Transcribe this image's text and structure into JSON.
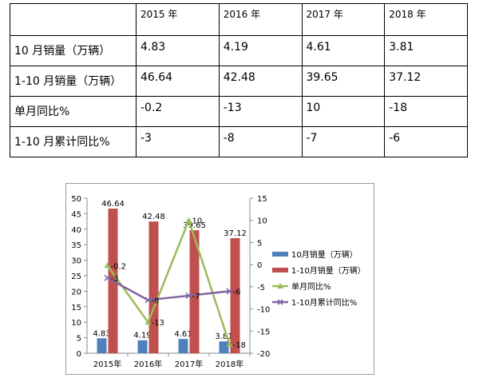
{
  "table": {
    "headers": [
      "",
      "2015 年",
      "2016 年",
      "2017 年",
      "2018 年"
    ],
    "rows": [
      {
        "label": "10 月销量（万辆）",
        "values": [
          "4.83",
          "4.19",
          "4.61",
          "3.81"
        ]
      },
      {
        "label": "1-10 月销量（万辆）",
        "values": [
          "46.64",
          "42.48",
          "39.65",
          "37.12"
        ]
      },
      {
        "label": "单月同比%",
        "values": [
          "-0.2",
          "-13",
          "10",
          "-18"
        ]
      },
      {
        "label": "1-10 月累计同比%",
        "values": [
          "-3",
          "-8",
          "-7",
          "-6"
        ]
      }
    ]
  },
  "chart_data": {
    "type": "bar",
    "categories": [
      "2015年",
      "2016年",
      "2017年",
      "2018年"
    ],
    "ylim": [
      0,
      50
    ],
    "yticks": [
      "0",
      "5",
      "10",
      "15",
      "20",
      "25",
      "30",
      "35",
      "40",
      "45",
      "50"
    ],
    "y2lim": [
      -20,
      15
    ],
    "y2ticks": [
      "-20",
      "-15",
      "-10",
      "-5",
      "0",
      "5",
      "10",
      "15"
    ],
    "grid": false,
    "legend": "right",
    "series": [
      {
        "name": "10月销量（万辆）",
        "kind": "bar",
        "axis": "left",
        "color": "#4f81bd",
        "values": [
          4.83,
          4.19,
          4.61,
          3.81
        ],
        "labels": [
          "4.83",
          "4.19",
          "4.61",
          "3.81"
        ]
      },
      {
        "name": "1-10月销量（万辆）",
        "kind": "bar",
        "axis": "left",
        "color": "#c0504d",
        "values": [
          46.64,
          42.48,
          39.65,
          37.12
        ],
        "labels": [
          "46.64",
          "42.48",
          "39.65",
          "37.12"
        ]
      },
      {
        "name": "单月同比%",
        "kind": "line",
        "marker": "triangle",
        "axis": "right",
        "color": "#9bbb59",
        "values": [
          -0.2,
          -13,
          10,
          -18
        ],
        "labels": [
          "-0.2",
          "-13",
          "10",
          "-18"
        ]
      },
      {
        "name": "1-10月累计同比%",
        "kind": "line",
        "marker": "x",
        "axis": "right",
        "color": "#8064a2",
        "values": [
          -3,
          -8,
          -7,
          -6
        ],
        "labels": [
          "-3",
          "-8",
          "-7",
          "-6"
        ]
      }
    ]
  }
}
